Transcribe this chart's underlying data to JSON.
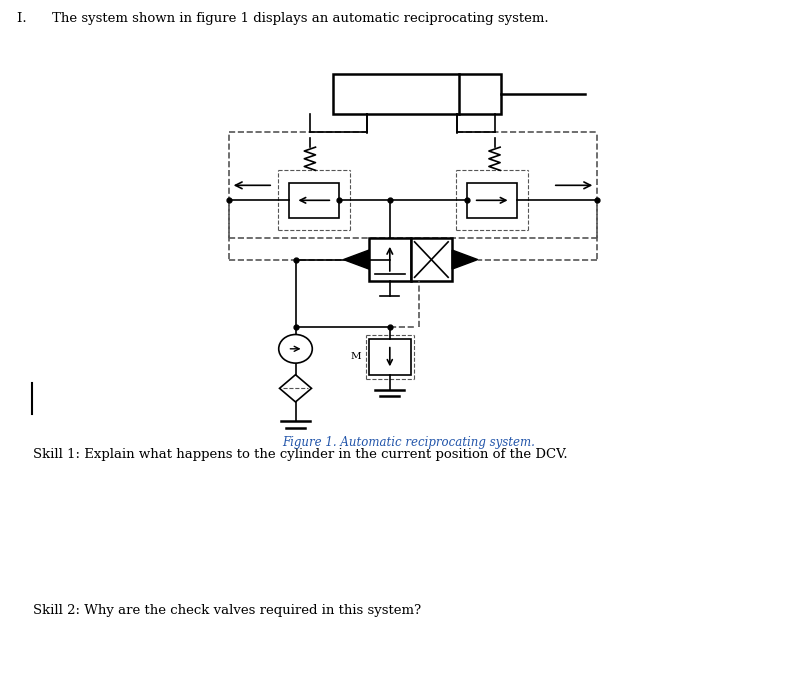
{
  "background_color": "#ffffff",
  "text_color": "#000000",
  "line_color": "#000000",
  "dashed_color": "#555555",
  "figure_caption": "Figure 1. Automatic reciprocating system.",
  "caption_color": "#2255aa",
  "title_text": "I.      The system shown in figure 1 displays an automatic reciprocating system.",
  "skill1_text": "Skill 1: Explain what happens to the cylinder in the current position of the DCV.",
  "skill2_text": "Skill 2: Why are the check valves required in this system?",
  "figsize": [
    8.02,
    6.84
  ],
  "dpi": 100
}
